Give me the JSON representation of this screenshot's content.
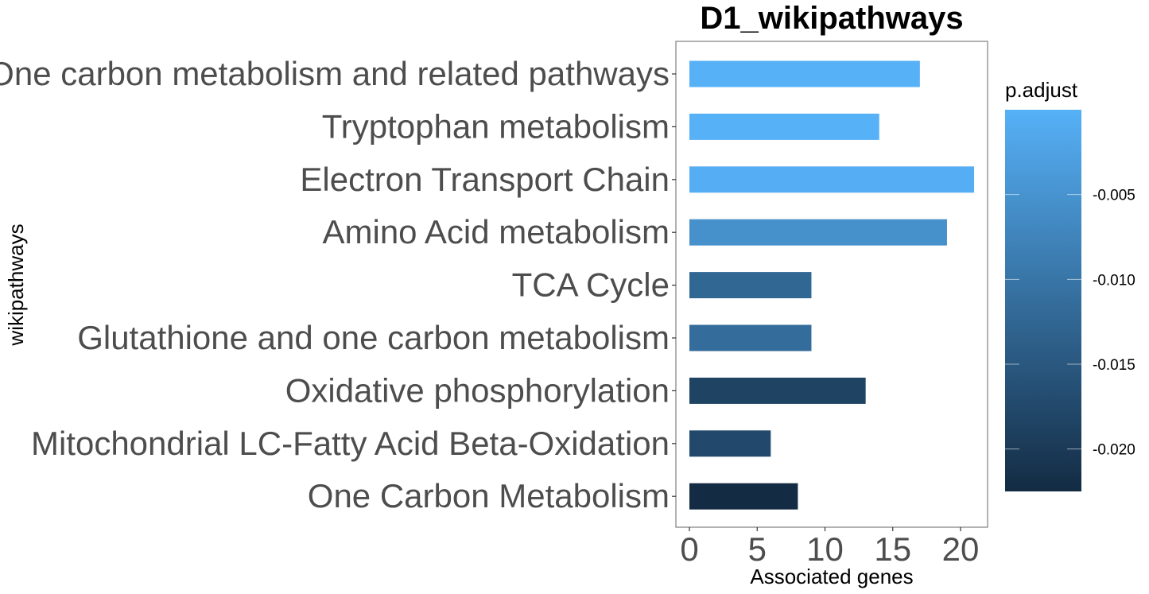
{
  "chart_data": {
    "type": "bar",
    "orientation": "horizontal",
    "title": "D1_wikipathways",
    "xlabel": "Associated genes",
    "ylabel": "wikipathways",
    "xlim": [
      0,
      22
    ],
    "x_ticks": [
      0,
      5,
      10,
      15,
      20
    ],
    "categories": [
      "One carbon metabolism and related pathways",
      "Tryptophan metabolism",
      "Electron Transport Chain",
      "Amino Acid metabolism",
      "TCA Cycle",
      "Glutathione and one carbon metabolism",
      "Oxidative phosphorylation",
      "Mitochondrial LC-Fatty Acid Beta-Oxidation",
      "One Carbon Metabolism"
    ],
    "values": [
      17,
      14,
      21,
      19,
      9,
      9,
      13,
      6,
      8
    ],
    "p_adjust": [
      0.0,
      0.0,
      -0.0005,
      -0.0055,
      -0.0125,
      -0.0115,
      -0.0185,
      -0.0175,
      -0.0225
    ],
    "grid": false,
    "legend": {
      "title": "p.adjust",
      "placement": "right",
      "range": [
        -0.0225,
        0.0
      ],
      "ticks": [
        -0.005,
        -0.01,
        -0.015,
        -0.02
      ],
      "tick_labels": [
        "-0.005",
        "-0.010",
        "-0.015",
        "-0.020"
      ],
      "color_low": "#132B43",
      "color_high": "#56B1F7"
    }
  }
}
